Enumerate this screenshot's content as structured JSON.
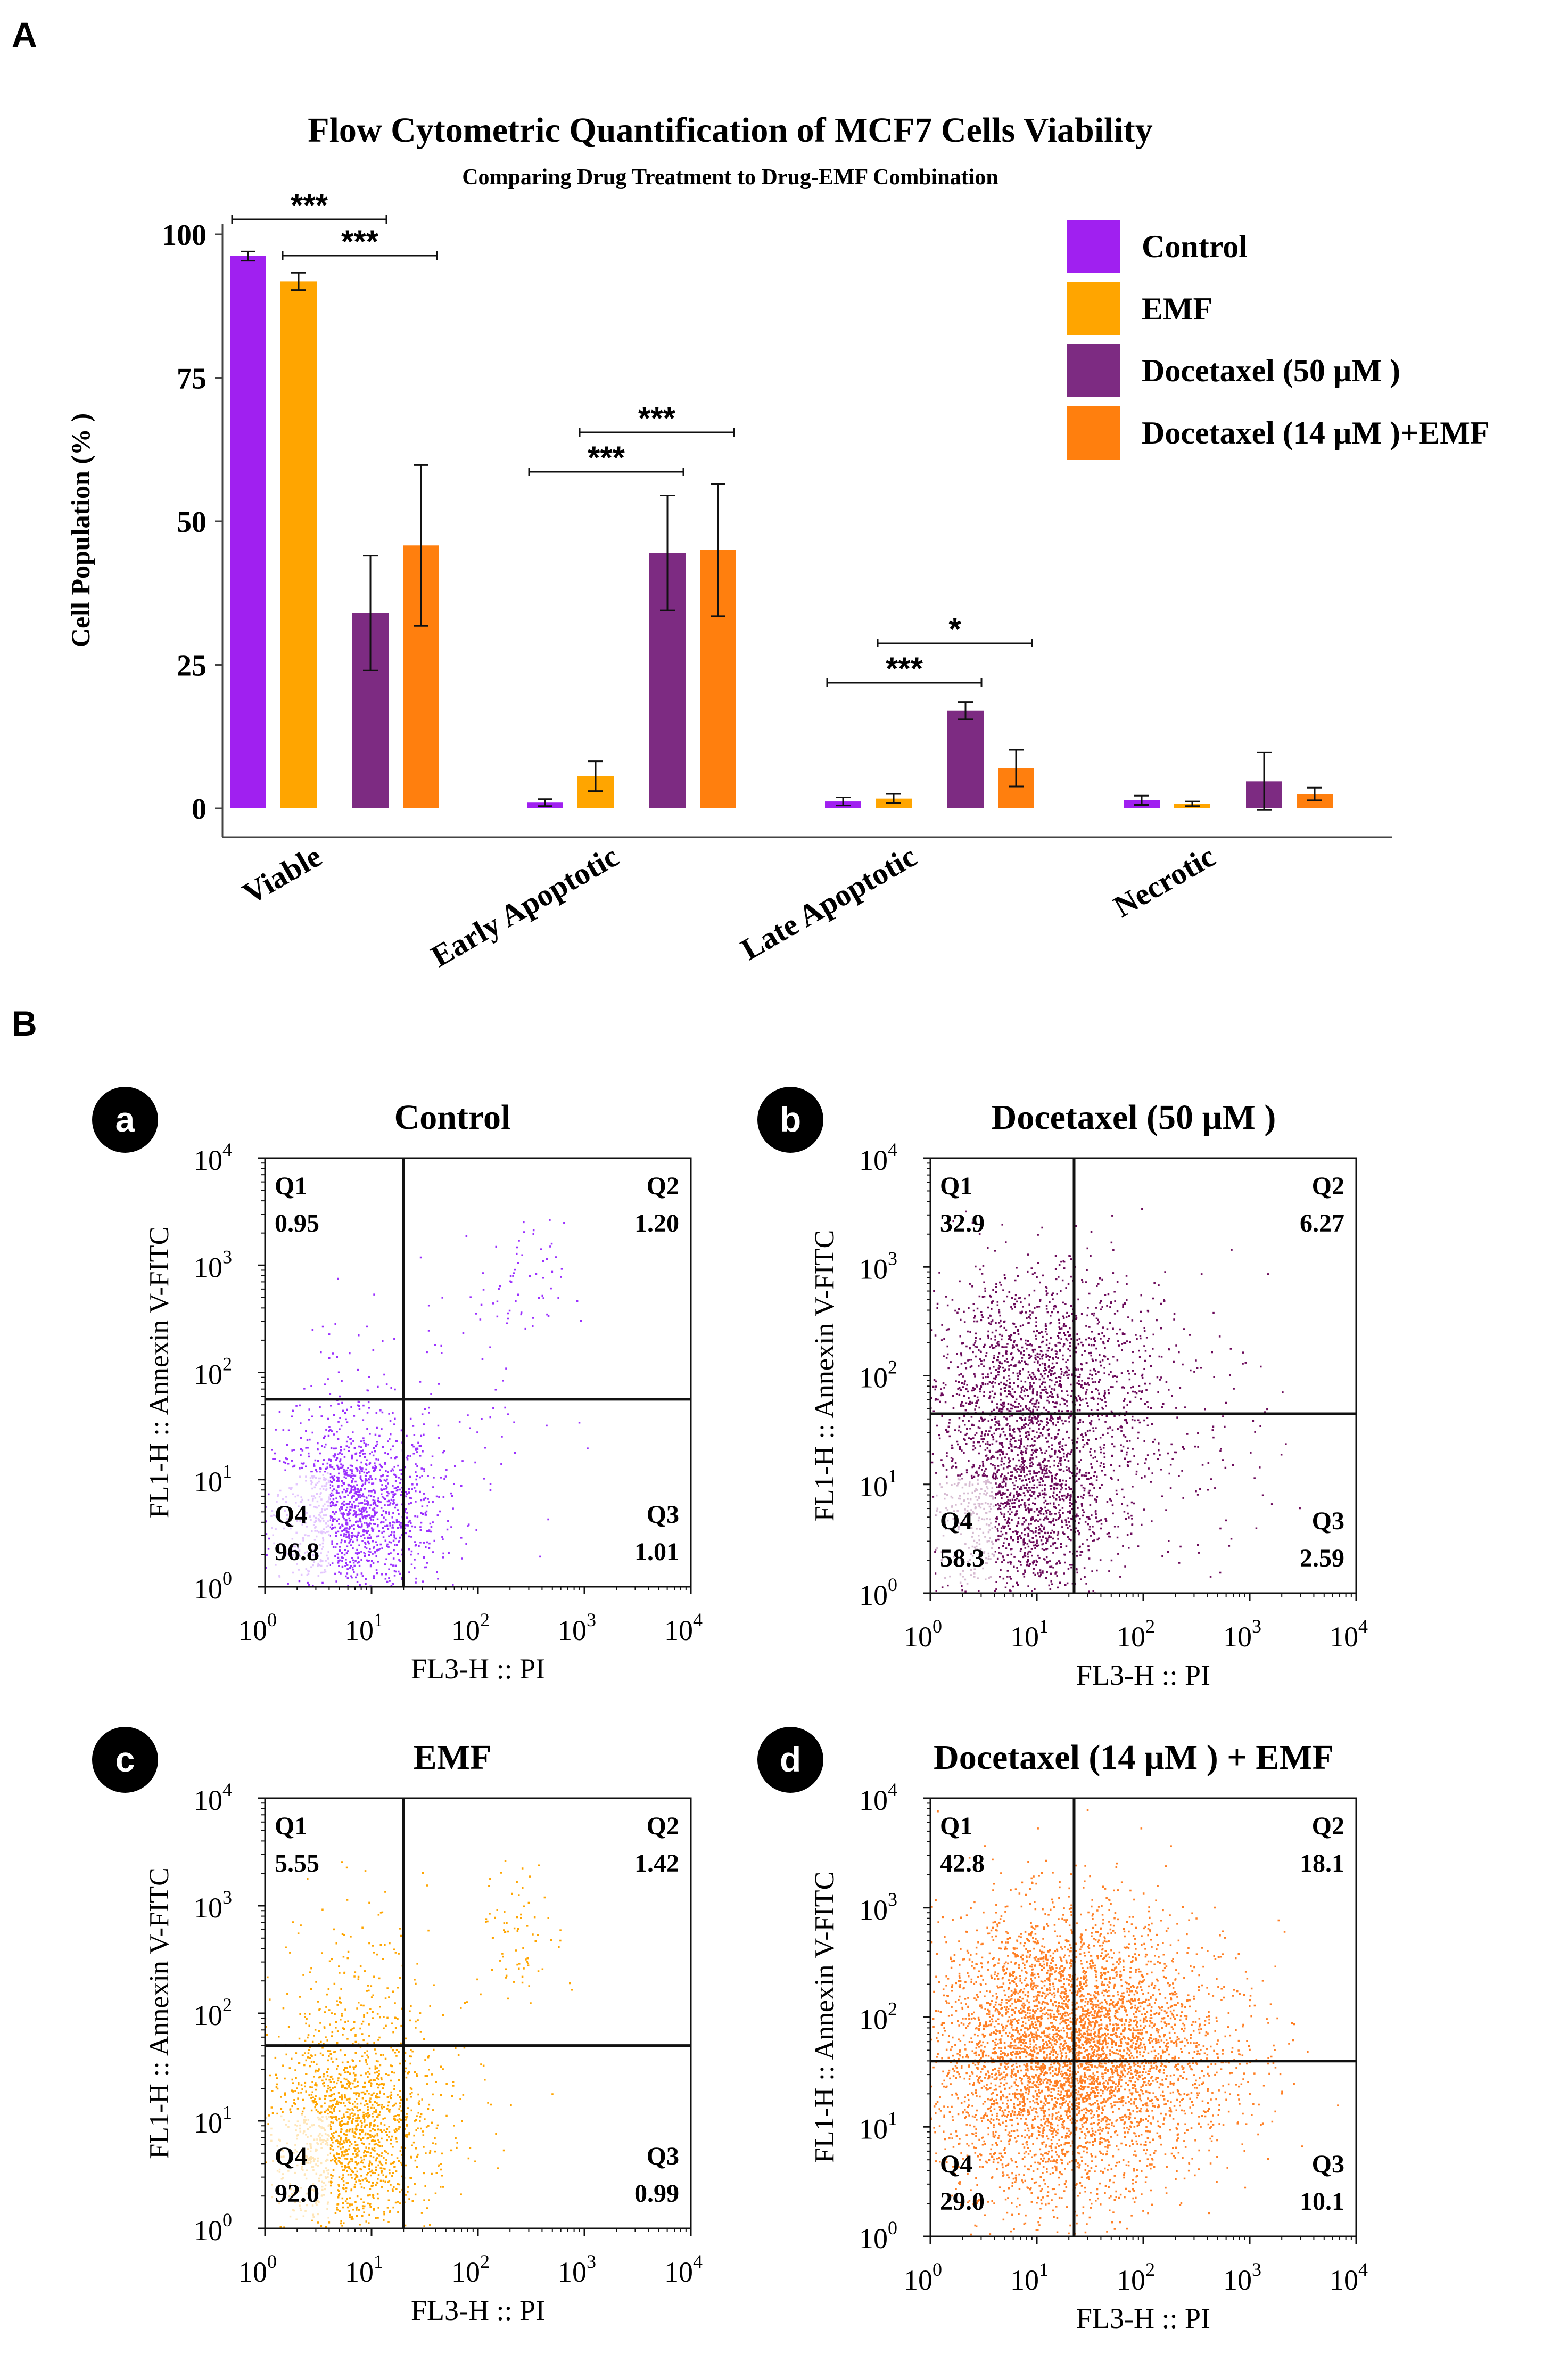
{
  "panelA": {
    "label": "A",
    "chart_data": {
      "type": "bar",
      "title": "Flow Cytometric Quantification of MCF7 Cells Viability",
      "subtitle": "Comparing Drug Treatment to Drug-EMF Combination",
      "xlabel": "",
      "ylabel": "Cell Population (% )",
      "ylim": [
        0,
        100
      ],
      "yticks": [
        "0",
        "25",
        "50",
        "75",
        "100"
      ],
      "categories": [
        "Viable",
        "Early Apoptotic",
        "Late Apoptotic",
        "Necrotic"
      ],
      "legend_position": "top-right",
      "series": [
        {
          "name": "Control",
          "color": "#A020F0",
          "values": [
            96.2,
            1.0,
            1.2,
            1.4
          ],
          "errors": [
            0.8,
            0.6,
            0.7,
            0.8
          ]
        },
        {
          "name": "EMF",
          "color": "#FFA500",
          "values": [
            91.8,
            5.6,
            1.7,
            0.8
          ],
          "errors": [
            1.5,
            2.6,
            0.8,
            0.4
          ]
        },
        {
          "name": "Docetaxel (50 µM )",
          "color": "#7D2B82",
          "values": [
            34.0,
            44.5,
            17.0,
            4.7
          ],
          "errors": [
            10.0,
            10.0,
            1.5,
            5.0
          ]
        },
        {
          "name": "Docetaxel (14 µM )+EMF",
          "color": "#FF7F0E",
          "values": [
            45.8,
            45.0,
            7.0,
            2.5
          ],
          "errors": [
            14.0,
            11.5,
            3.2,
            1.1
          ]
        }
      ],
      "significance": [
        {
          "category": 0,
          "from": 0,
          "to": 2,
          "label": "***"
        },
        {
          "category": 0,
          "from": 1,
          "to": 3,
          "label": "***"
        },
        {
          "category": 1,
          "from": 0,
          "to": 2,
          "label": "***"
        },
        {
          "category": 1,
          "from": 1,
          "to": 3,
          "label": "***"
        },
        {
          "category": 2,
          "from": 0,
          "to": 2,
          "label": "***"
        },
        {
          "category": 2,
          "from": 1,
          "to": 3,
          "label": "*"
        }
      ]
    }
  },
  "panelB": {
    "label": "B",
    "chart_data": [
      {
        "type": "scatter",
        "badge": "a",
        "title": "Control",
        "color": "#9B30FF",
        "xlabel": "FL3-H :: PI",
        "ylabel": "FL1-H :: Annexin V-FITC",
        "xlim_log10": [
          0,
          4
        ],
        "ylim_log10": [
          0,
          4
        ],
        "quadrants": {
          "Q1": "0.95",
          "Q2": "1.20",
          "Q3": "1.01",
          "Q4": "96.8"
        },
        "gate_log10": {
          "x": 1.3,
          "y": 1.75
        },
        "population": [
          {
            "cx": 0.85,
            "cy": 0.7,
            "sx": 0.38,
            "sy": 0.4,
            "n": 1400
          },
          {
            "cx": 0.7,
            "cy": 1.6,
            "sx": 0.45,
            "sy": 0.55,
            "n": 120
          },
          {
            "cx": 2.4,
            "cy": 2.8,
            "sx": 0.2,
            "sy": 0.3,
            "n": 60
          },
          {
            "cx": 1.9,
            "cy": 1.6,
            "sx": 0.5,
            "sy": 0.7,
            "n": 50
          }
        ],
        "highlight_q4": true
      },
      {
        "type": "scatter",
        "badge": "b",
        "title": "Docetaxel (50 µM )",
        "color": "#6B0A5A",
        "xlabel": "FL3-H :: PI",
        "ylabel": "FL1-H :: Annexin V-FITC",
        "xlim_log10": [
          0,
          4
        ],
        "ylim_log10": [
          0,
          4
        ],
        "quadrants": {
          "Q1": "32.9",
          "Q2": "6.27",
          "Q3": "2.59",
          "Q4": "58.3"
        },
        "gate_log10": {
          "x": 1.35,
          "y": 1.65
        },
        "population": [
          {
            "cx": 0.85,
            "cy": 0.85,
            "sx": 0.4,
            "sy": 0.5,
            "n": 1500
          },
          {
            "cx": 0.95,
            "cy": 2.0,
            "sx": 0.5,
            "sy": 0.5,
            "n": 1300
          },
          {
            "cx": 1.8,
            "cy": 1.9,
            "sx": 0.55,
            "sy": 0.6,
            "n": 220
          },
          {
            "cx": 2.2,
            "cy": 1.2,
            "sx": 0.55,
            "sy": 0.5,
            "n": 110
          }
        ],
        "highlight_q4": true
      },
      {
        "type": "scatter",
        "badge": "c",
        "title": "EMF",
        "color": "#FFA500",
        "xlabel": "FL3-H :: PI",
        "ylabel": "FL1-H :: Annexin V-FITC",
        "xlim_log10": [
          0,
          4
        ],
        "ylim_log10": [
          0,
          4
        ],
        "quadrants": {
          "Q1": "5.55",
          "Q2": "1.42",
          "Q3": "0.99",
          "Q4": "92.0"
        },
        "gate_log10": {
          "x": 1.3,
          "y": 1.7
        },
        "population": [
          {
            "cx": 0.8,
            "cy": 0.85,
            "sx": 0.38,
            "sy": 0.45,
            "n": 1400
          },
          {
            "cx": 0.8,
            "cy": 2.0,
            "sx": 0.35,
            "sy": 0.55,
            "n": 260
          },
          {
            "cx": 2.4,
            "cy": 2.75,
            "sx": 0.2,
            "sy": 0.3,
            "n": 70
          },
          {
            "cx": 1.9,
            "cy": 1.5,
            "sx": 0.5,
            "sy": 0.6,
            "n": 40
          }
        ],
        "highlight_q4": true
      },
      {
        "type": "scatter",
        "badge": "d",
        "title": "Docetaxel (14 µM ) + EMF",
        "color": "#FF7F24",
        "xlabel": "FL3-H :: PI",
        "ylabel": "FL1-H :: Annexin V-FITC",
        "xlim_log10": [
          0,
          4
        ],
        "ylim_log10": [
          0,
          4
        ],
        "quadrants": {
          "Q1": "42.8",
          "Q2": "18.1",
          "Q3": "10.1",
          "Q4": "29.0"
        },
        "gate_log10": {
          "x": 1.35,
          "y": 1.6
        },
        "population": [
          {
            "cx": 1.25,
            "cy": 1.75,
            "sx": 0.6,
            "sy": 0.6,
            "n": 4200
          },
          {
            "cx": 1.2,
            "cy": 1.0,
            "sx": 0.55,
            "sy": 0.6,
            "n": 600
          },
          {
            "cx": 2.3,
            "cy": 1.7,
            "sx": 0.5,
            "sy": 0.5,
            "n": 400
          }
        ],
        "highlight_q4": false
      }
    ]
  }
}
